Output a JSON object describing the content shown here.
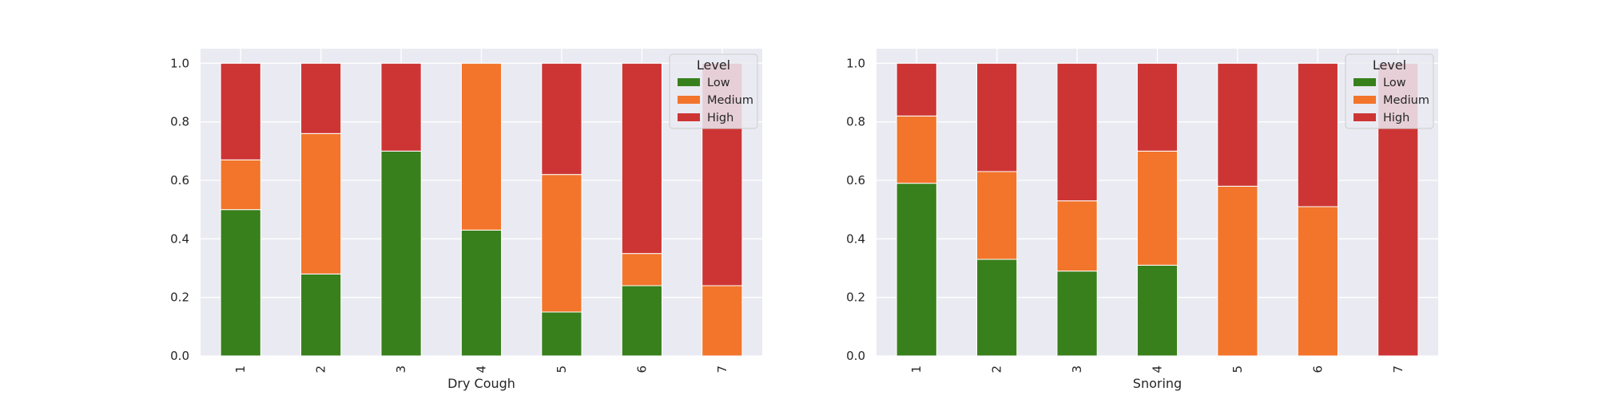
{
  "chart_data": [
    {
      "type": "bar",
      "stacked": true,
      "categories": [
        "1",
        "2",
        "3",
        "4",
        "5",
        "6",
        "7"
      ],
      "xlabel": "Dry Cough",
      "ylabel": "",
      "ylim": [
        0,
        1.05
      ],
      "yticks": [
        "0.0",
        "0.2",
        "0.4",
        "0.6",
        "0.8",
        "1.0"
      ],
      "grid": true,
      "legend": {
        "title": "Level",
        "position": "top-right"
      },
      "series": [
        {
          "name": "Low",
          "color": "#38801c",
          "values": [
            0.5,
            0.28,
            0.7,
            0.43,
            0.15,
            0.24,
            0.0
          ]
        },
        {
          "name": "Medium",
          "color": "#f2752b",
          "values": [
            0.17,
            0.48,
            0.0,
            0.57,
            0.47,
            0.11,
            0.24
          ]
        },
        {
          "name": "High",
          "color": "#cd3535",
          "values": [
            0.33,
            0.24,
            0.3,
            0.0,
            0.38,
            0.65,
            0.76
          ]
        }
      ]
    },
    {
      "type": "bar",
      "stacked": true,
      "categories": [
        "1",
        "2",
        "3",
        "4",
        "5",
        "6",
        "7"
      ],
      "xlabel": "Snoring",
      "ylabel": "",
      "ylim": [
        0,
        1.05
      ],
      "yticks": [
        "0.0",
        "0.2",
        "0.4",
        "0.6",
        "0.8",
        "1.0"
      ],
      "grid": true,
      "legend": {
        "title": "Level",
        "position": "top-right"
      },
      "series": [
        {
          "name": "Low",
          "color": "#38801c",
          "values": [
            0.59,
            0.33,
            0.29,
            0.31,
            0.0,
            0.0,
            0.0
          ]
        },
        {
          "name": "Medium",
          "color": "#f2752b",
          "values": [
            0.23,
            0.3,
            0.24,
            0.39,
            0.58,
            0.51,
            0.0
          ]
        },
        {
          "name": "High",
          "color": "#cd3535",
          "values": [
            0.18,
            0.37,
            0.47,
            0.3,
            0.42,
            0.49,
            1.0
          ]
        }
      ]
    }
  ]
}
